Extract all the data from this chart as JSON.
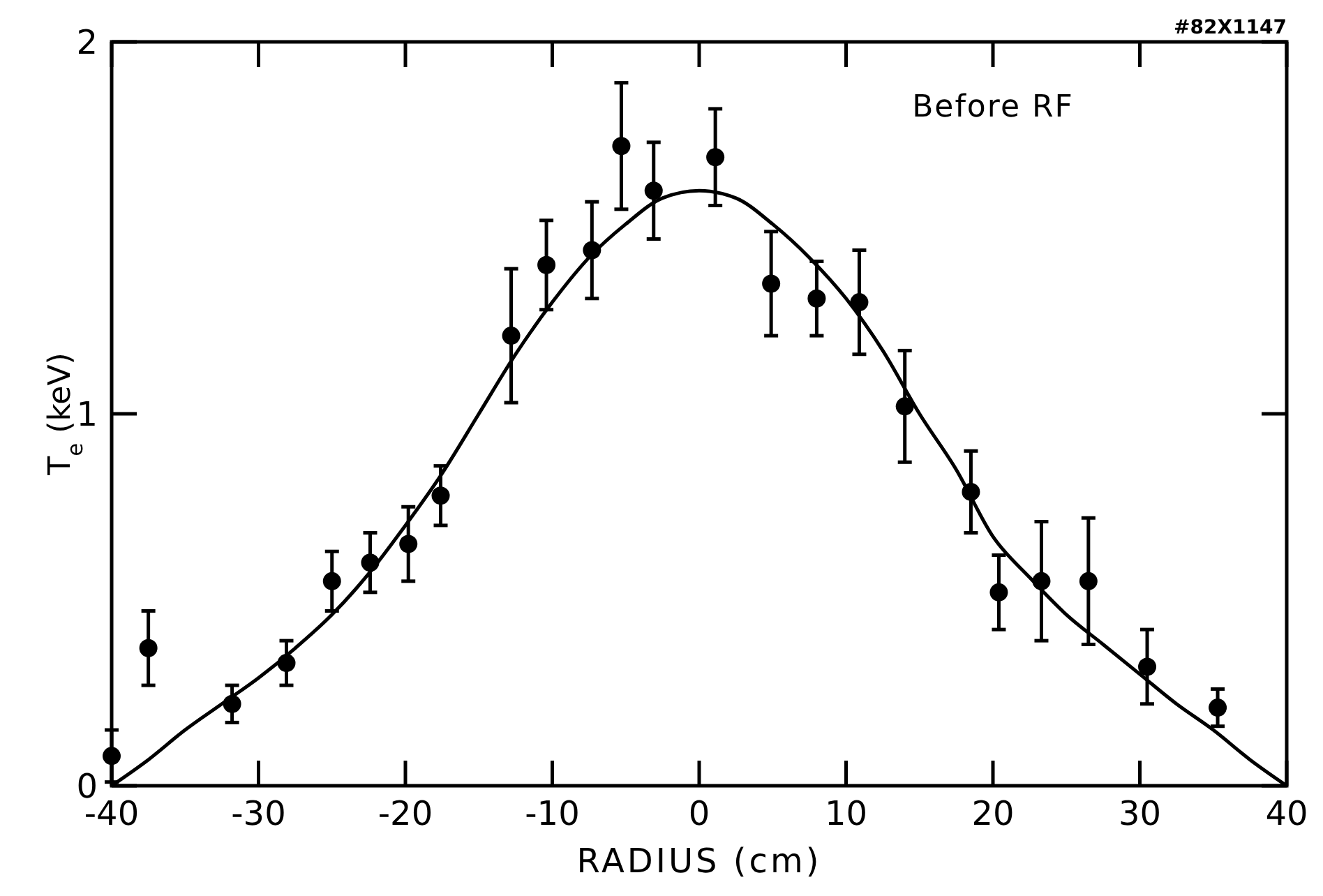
{
  "chart_data": {
    "type": "scatter",
    "ylabel": "T$_{e}$ (keV)",
    "xlabel": "RADIUS (cm)",
    "annotations": [
      "Before RF",
      "#82X1147"
    ],
    "xlim": [
      -40,
      40
    ],
    "xticks": [
      -40,
      -30,
      -20,
      -10,
      0,
      10,
      20,
      30,
      40
    ],
    "ylim": [
      0,
      2
    ],
    "yticks": [
      0,
      1,
      2
    ],
    "grid": false,
    "series": [
      {
        "marker": "circle",
        "color": "#000000",
        "x": [
          -40,
          -37.5,
          -31.8,
          -28.1,
          -25,
          -22.4,
          -19.8,
          -17.6,
          -12.8,
          -10.4,
          -7.3,
          -5.3,
          -3.1,
          1.1,
          4.9,
          8,
          10.9,
          14,
          18.5,
          20.4,
          23.3,
          26.5,
          30.5,
          35.3
        ],
        "values": [
          0.08,
          0.37,
          0.22,
          0.33,
          0.55,
          0.6,
          0.65,
          0.78,
          1.21,
          1.4,
          1.44,
          1.72,
          1.6,
          1.69,
          1.35,
          1.31,
          1.3,
          1.02,
          0.79,
          0.52,
          0.55,
          0.55,
          0.32,
          0.21
        ],
        "errors": [
          0.07,
          0.1,
          0.05,
          0.06,
          0.08,
          0.08,
          0.1,
          0.08,
          0.18,
          0.12,
          0.13,
          0.17,
          0.13,
          0.13,
          0.14,
          0.1,
          0.14,
          0.15,
          0.11,
          0.1,
          0.16,
          0.17,
          0.1,
          0.05
        ]
      },
      {
        "type": "line",
        "line_style": "solid",
        "color": "#000000",
        "x": [
          -40,
          -37.5,
          -35,
          -32.5,
          -30,
          -27.5,
          -25,
          -22.5,
          -20,
          -17.5,
          -15,
          -12.5,
          -10,
          -7.5,
          -5,
          -2.5,
          0,
          2.5,
          5,
          7.5,
          10,
          12.5,
          15,
          17.5,
          20,
          22.5,
          25,
          27.5,
          30,
          32.5,
          35,
          37.5,
          40
        ],
        "values": [
          0,
          0.07,
          0.15,
          0.22,
          0.29,
          0.37,
          0.46,
          0.57,
          0.7,
          0.84,
          1.0,
          1.16,
          1.3,
          1.42,
          1.51,
          1.58,
          1.6,
          1.58,
          1.51,
          1.42,
          1.31,
          1.17,
          1.0,
          0.85,
          0.67,
          0.56,
          0.46,
          0.38,
          0.3,
          0.22,
          0.15,
          0.07,
          0
        ]
      }
    ]
  }
}
